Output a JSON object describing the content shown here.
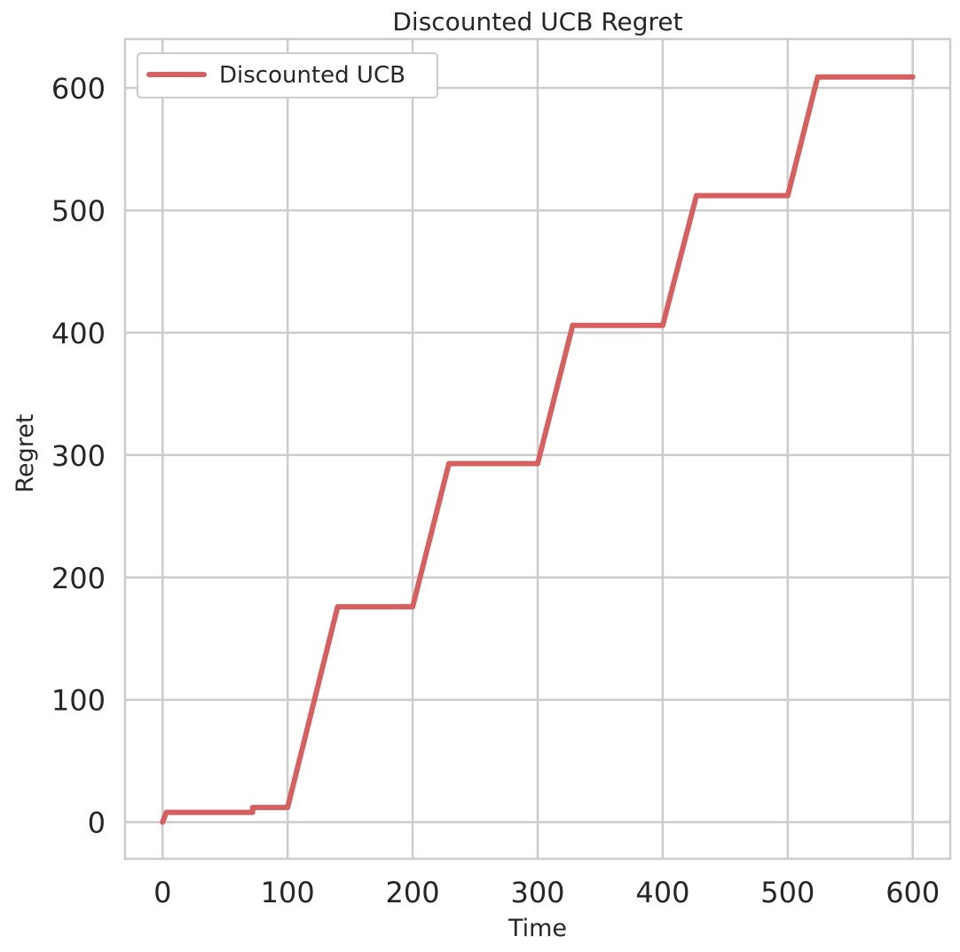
{
  "chart_data": {
    "type": "line",
    "title": "Discounted UCB Regret",
    "xlabel": "Time",
    "ylabel": "Regret",
    "xlim": [
      -30,
      630
    ],
    "ylim": [
      -30,
      640
    ],
    "xticks": [
      0,
      100,
      200,
      300,
      400,
      500,
      600
    ],
    "yticks": [
      0,
      100,
      200,
      300,
      400,
      500,
      600
    ],
    "xtick_labels": [
      "0",
      "100",
      "200",
      "300",
      "400",
      "500",
      "600"
    ],
    "ytick_labels": [
      "0",
      "100",
      "200",
      "300",
      "400",
      "500",
      "600"
    ],
    "grid": true,
    "legend_position": "top-left",
    "series": [
      {
        "name": "Discounted UCB",
        "color": "#d65f5f",
        "x": [
          0,
          3,
          40,
          72,
          72,
          100,
          140,
          170,
          200,
          229,
          260,
          300,
          328,
          360,
          400,
          427,
          460,
          500,
          524,
          560,
          600
        ],
        "y": [
          0,
          8,
          8,
          8,
          12,
          12,
          176,
          176,
          176,
          293,
          293,
          293,
          406,
          406,
          406,
          512,
          512,
          512,
          609,
          609,
          609
        ]
      }
    ]
  }
}
